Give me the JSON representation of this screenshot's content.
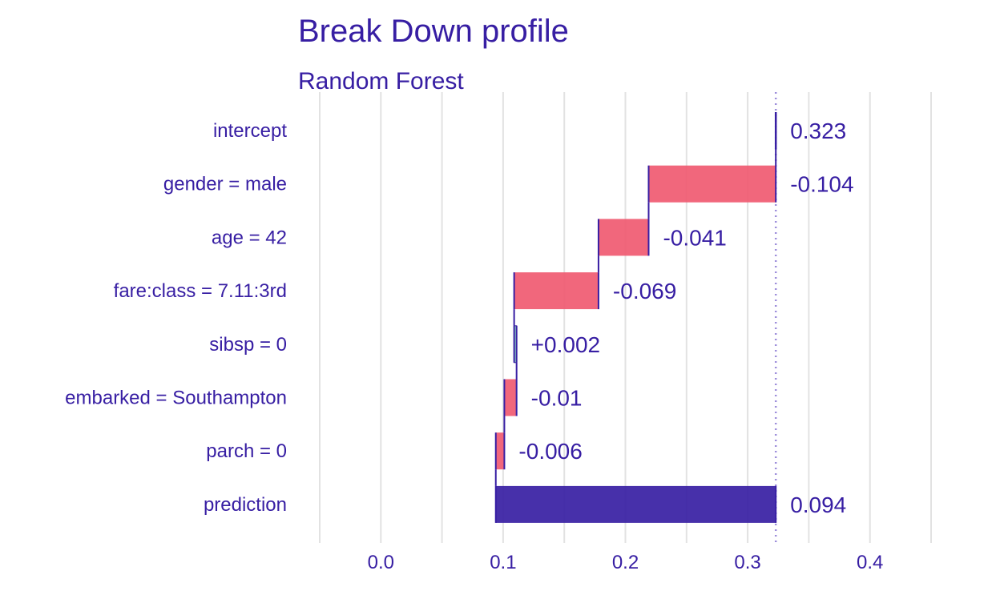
{
  "chart_data": {
    "type": "bar",
    "subtype": "break-down-waterfall",
    "title": "Break Down profile",
    "subtitle": "Random Forest",
    "xlabel": "",
    "ylabel": "",
    "xlim": [
      -0.05,
      0.45
    ],
    "xticks": [
      0.0,
      0.1,
      0.2,
      0.3,
      0.4
    ],
    "xtick_labels": [
      "0.0",
      "0.1",
      "0.2",
      "0.3",
      "0.4"
    ],
    "grid": true,
    "legend": "none",
    "intercept_line": 0.323,
    "rows": [
      {
        "label": "intercept",
        "start": 0.323,
        "end": 0.323,
        "value_label": "0.323",
        "kind": "intercept"
      },
      {
        "label": "gender = male",
        "start": 0.323,
        "end": 0.219,
        "value_label": "-0.104",
        "kind": "negative"
      },
      {
        "label": "age = 42",
        "start": 0.219,
        "end": 0.178,
        "value_label": "-0.041",
        "kind": "negative"
      },
      {
        "label": "fare:class = 7.11:3rd",
        "start": 0.178,
        "end": 0.109,
        "value_label": "-0.069",
        "kind": "negative"
      },
      {
        "label": "sibsp = 0",
        "start": 0.109,
        "end": 0.111,
        "value_label": "+0.002",
        "kind": "positive"
      },
      {
        "label": "embarked = Southampton",
        "start": 0.111,
        "end": 0.101,
        "value_label": "-0.01",
        "kind": "negative"
      },
      {
        "label": "parch = 0",
        "start": 0.101,
        "end": 0.094,
        "value_label": "-0.006",
        "kind": "negative"
      },
      {
        "label": "prediction",
        "start": 0.094,
        "end": 0.323,
        "value_label": "0.094",
        "kind": "prediction"
      }
    ],
    "colors": {
      "text": "#371EA3",
      "negative": "#F05A71",
      "positive": "#8BDCBE",
      "prediction": "#371EA3",
      "connector": "#371EA3",
      "grid": "#E2E2E2",
      "intercept_line": "#9E8FDB"
    }
  }
}
